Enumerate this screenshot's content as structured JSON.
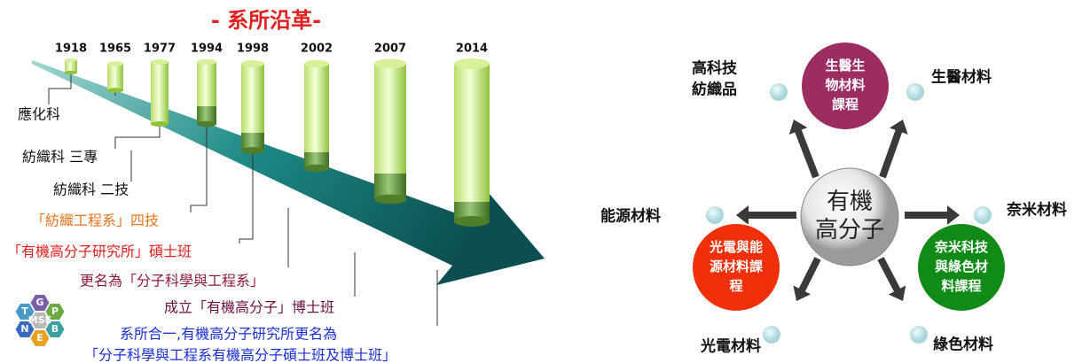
{
  "timeline": {
    "title": "- 系所沿革-",
    "years": [
      "1918",
      "1965",
      "1977",
      "1994",
      "1998",
      "2002",
      "2007",
      "2014"
    ],
    "events": [
      "應化科",
      "紡織科 三專",
      "紡織科 二技",
      "「紡織工程系」四技",
      "「有機高分子研究所」碩士班",
      "更名為「分子科學與工程系」",
      "成立「有機高分子」博士班",
      "系所合一,有機高分子研究所更名為",
      "「分子科學與工程系有機高分子碩士班及博士班」"
    ]
  },
  "logo": {
    "letters": [
      "T",
      "G",
      "P",
      "N",
      "E",
      "B"
    ],
    "center": "MSE"
  },
  "hub": {
    "center": [
      "有機",
      "高分子"
    ],
    "programs": [
      [
        "生醫生",
        "物材料",
        "課程"
      ],
      [
        "光電與能",
        "源材料課",
        "程"
      ],
      [
        "奈米科技",
        "與綠色材",
        "料課程"
      ]
    ],
    "fields": [
      [
        "高科技",
        "紡織品"
      ],
      [
        "生醫材料"
      ],
      [
        "奈米材料"
      ],
      [
        "能源材料"
      ],
      [
        "光電材料"
      ],
      [
        "綠色材料"
      ]
    ]
  }
}
